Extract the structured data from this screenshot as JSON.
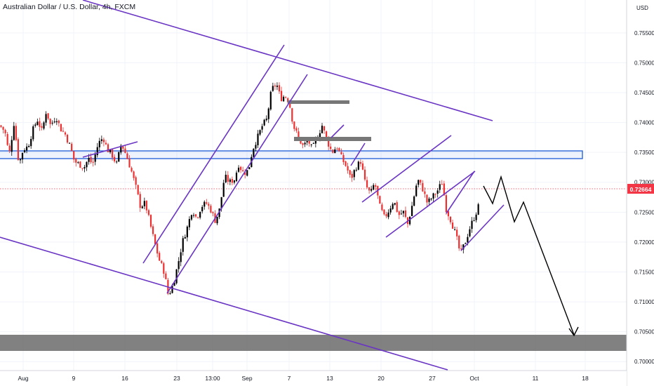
{
  "header": {
    "title": "Australian Dollar / U.S. Dollar, 4h, FXCM"
  },
  "chart_data": {
    "type": "candlestick",
    "ylabel": "USD",
    "ylim": [
      0.6985,
      0.7605
    ],
    "y_ticks": [
      0.7,
      0.705,
      0.71,
      0.715,
      0.72,
      0.725,
      0.73,
      0.735,
      0.74,
      0.745,
      0.75,
      0.755
    ],
    "y_tick_labels": [
      "0.70000",
      "0.70500",
      "0.71000",
      "0.71500",
      "0.72000",
      "0.72500",
      "0.73000",
      "0.73500",
      "0.74000",
      "0.74500",
      "0.75000",
      "0.75500"
    ],
    "x_tick_labels": [
      "Aug",
      "9",
      "16",
      "23",
      "13:00",
      "Sep",
      "7",
      "13",
      "20",
      "27",
      "Oct",
      "11",
      "18"
    ],
    "current_price": "0.72664",
    "colors": {
      "up": "#000000",
      "down": "#ef2f2f",
      "channel": "#6a35c4",
      "zone_blue": "#1e5ad6",
      "zone_gray": "#6b6b6b",
      "price_line": "#f23645"
    },
    "price_path": [
      {
        "t": 0,
        "p": 0.7395
      },
      {
        "t": 7,
        "p": 0.7385
      },
      {
        "t": 13,
        "p": 0.7345
      },
      {
        "t": 20,
        "p": 0.74
      },
      {
        "t": 27,
        "p": 0.733
      },
      {
        "t": 33,
        "p": 0.7355
      },
      {
        "t": 40,
        "p": 0.736
      },
      {
        "t": 46,
        "p": 0.7385
      },
      {
        "t": 53,
        "p": 0.7405
      },
      {
        "t": 60,
        "p": 0.7385
      },
      {
        "t": 66,
        "p": 0.742
      },
      {
        "t": 72,
        "p": 0.7395
      },
      {
        "t": 80,
        "p": 0.741
      },
      {
        "t": 86,
        "p": 0.739
      },
      {
        "t": 93,
        "p": 0.738
      },
      {
        "t": 100,
        "p": 0.736
      },
      {
        "t": 106,
        "p": 0.7335
      },
      {
        "t": 113,
        "p": 0.733
      },
      {
        "t": 120,
        "p": 0.7325
      },
      {
        "t": 126,
        "p": 0.734
      },
      {
        "t": 132,
        "p": 0.733
      },
      {
        "t": 140,
        "p": 0.7365
      },
      {
        "t": 147,
        "p": 0.7375
      },
      {
        "t": 153,
        "p": 0.7355
      },
      {
        "t": 160,
        "p": 0.7345
      },
      {
        "t": 166,
        "p": 0.733
      },
      {
        "t": 173,
        "p": 0.7365
      },
      {
        "t": 180,
        "p": 0.7345
      },
      {
        "t": 187,
        "p": 0.732
      },
      {
        "t": 194,
        "p": 0.729
      },
      {
        "t": 200,
        "p": 0.726
      },
      {
        "t": 207,
        "p": 0.7265
      },
      {
        "t": 214,
        "p": 0.723
      },
      {
        "t": 220,
        "p": 0.72
      },
      {
        "t": 227,
        "p": 0.717
      },
      {
        "t": 234,
        "p": 0.715
      },
      {
        "t": 240,
        "p": 0.711
      },
      {
        "t": 247,
        "p": 0.713
      },
      {
        "t": 254,
        "p": 0.7165
      },
      {
        "t": 260,
        "p": 0.72
      },
      {
        "t": 267,
        "p": 0.7225
      },
      {
        "t": 274,
        "p": 0.7255
      },
      {
        "t": 280,
        "p": 0.724
      },
      {
        "t": 287,
        "p": 0.726
      },
      {
        "t": 294,
        "p": 0.7265
      },
      {
        "t": 300,
        "p": 0.7255
      },
      {
        "t": 307,
        "p": 0.7235
      },
      {
        "t": 313,
        "p": 0.7255
      },
      {
        "t": 320,
        "p": 0.731
      },
      {
        "t": 327,
        "p": 0.73
      },
      {
        "t": 334,
        "p": 0.7305
      },
      {
        "t": 340,
        "p": 0.733
      },
      {
        "t": 347,
        "p": 0.7315
      },
      {
        "t": 354,
        "p": 0.732
      },
      {
        "t": 360,
        "p": 0.7355
      },
      {
        "t": 367,
        "p": 0.7375
      },
      {
        "t": 374,
        "p": 0.7395
      },
      {
        "t": 380,
        "p": 0.7405
      },
      {
        "t": 387,
        "p": 0.7455
      },
      {
        "t": 394,
        "p": 0.7465
      },
      {
        "t": 400,
        "p": 0.744
      },
      {
        "t": 406,
        "p": 0.7445
      },
      {
        "t": 412,
        "p": 0.7435
      },
      {
        "t": 418,
        "p": 0.7395
      },
      {
        "t": 425,
        "p": 0.7375
      },
      {
        "t": 432,
        "p": 0.736
      },
      {
        "t": 439,
        "p": 0.737
      },
      {
        "t": 445,
        "p": 0.7355
      },
      {
        "t": 452,
        "p": 0.7375
      },
      {
        "t": 459,
        "p": 0.7395
      },
      {
        "t": 466,
        "p": 0.737
      },
      {
        "t": 473,
        "p": 0.735
      },
      {
        "t": 480,
        "p": 0.736
      },
      {
        "t": 487,
        "p": 0.734
      },
      {
        "t": 494,
        "p": 0.7325
      },
      {
        "t": 500,
        "p": 0.7305
      },
      {
        "t": 507,
        "p": 0.7325
      },
      {
        "t": 514,
        "p": 0.7335
      },
      {
        "t": 521,
        "p": 0.7295
      },
      {
        "t": 528,
        "p": 0.728
      },
      {
        "t": 534,
        "p": 0.73
      },
      {
        "t": 541,
        "p": 0.726
      },
      {
        "t": 548,
        "p": 0.724
      },
      {
        "t": 555,
        "p": 0.7255
      },
      {
        "t": 561,
        "p": 0.727
      },
      {
        "t": 568,
        "p": 0.7245
      },
      {
        "t": 575,
        "p": 0.725
      },
      {
        "t": 581,
        "p": 0.723
      },
      {
        "t": 588,
        "p": 0.7265
      },
      {
        "t": 595,
        "p": 0.7305
      },
      {
        "t": 602,
        "p": 0.729
      },
      {
        "t": 609,
        "p": 0.7265
      },
      {
        "t": 616,
        "p": 0.7275
      },
      {
        "t": 623,
        "p": 0.7285
      },
      {
        "t": 630,
        "p": 0.73
      },
      {
        "t": 636,
        "p": 0.7255
      },
      {
        "t": 643,
        "p": 0.7235
      },
      {
        "t": 650,
        "p": 0.721
      },
      {
        "t": 656,
        "p": 0.718
      },
      {
        "t": 663,
        "p": 0.72
      },
      {
        "t": 670,
        "p": 0.7225
      },
      {
        "t": 677,
        "p": 0.7245
      },
      {
        "t": 684,
        "p": 0.7266
      }
    ]
  }
}
